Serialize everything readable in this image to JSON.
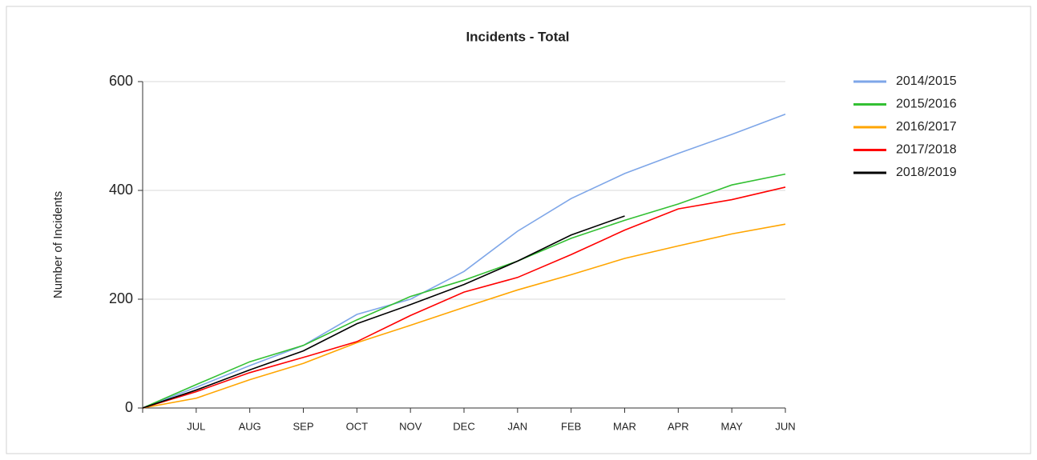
{
  "chart_data": {
    "type": "line",
    "title": "Incidents - Total",
    "y_label": "Number of Incidents",
    "categories": [
      null,
      "JUL",
      "AUG",
      "SEP",
      "OCT",
      "NOV",
      "DEC",
      "JAN",
      "FEB",
      "MAR",
      "APR",
      "MAY",
      "JUN"
    ],
    "series": [
      {
        "name": "2014/2015",
        "color": "#7ea6e8",
        "values": [
          0,
          38,
          78,
          115,
          172,
          200,
          251,
          325,
          385,
          431,
          468,
          503,
          540
        ]
      },
      {
        "name": "2015/2016",
        "color": "#33c033",
        "values": [
          0,
          43,
          85,
          115,
          162,
          205,
          235,
          270,
          312,
          345,
          375,
          410,
          430
        ]
      },
      {
        "name": "2016/2017",
        "color": "#ffa500",
        "values": [
          0,
          18,
          52,
          82,
          120,
          152,
          185,
          217,
          245,
          275,
          298,
          320,
          338
        ]
      },
      {
        "name": "2017/2018",
        "color": "#ff0000",
        "values": [
          0,
          30,
          65,
          93,
          122,
          170,
          213,
          240,
          282,
          327,
          366,
          383,
          406
        ]
      },
      {
        "name": "2018/2019",
        "color": "#000000",
        "values": [
          0,
          33,
          70,
          105,
          155,
          190,
          227,
          270,
          318,
          353,
          null,
          null,
          null
        ]
      }
    ],
    "ylim": [
      0,
      600
    ],
    "yticks": [
      0,
      200,
      400,
      600
    ],
    "grid": true,
    "legend": "right"
  }
}
